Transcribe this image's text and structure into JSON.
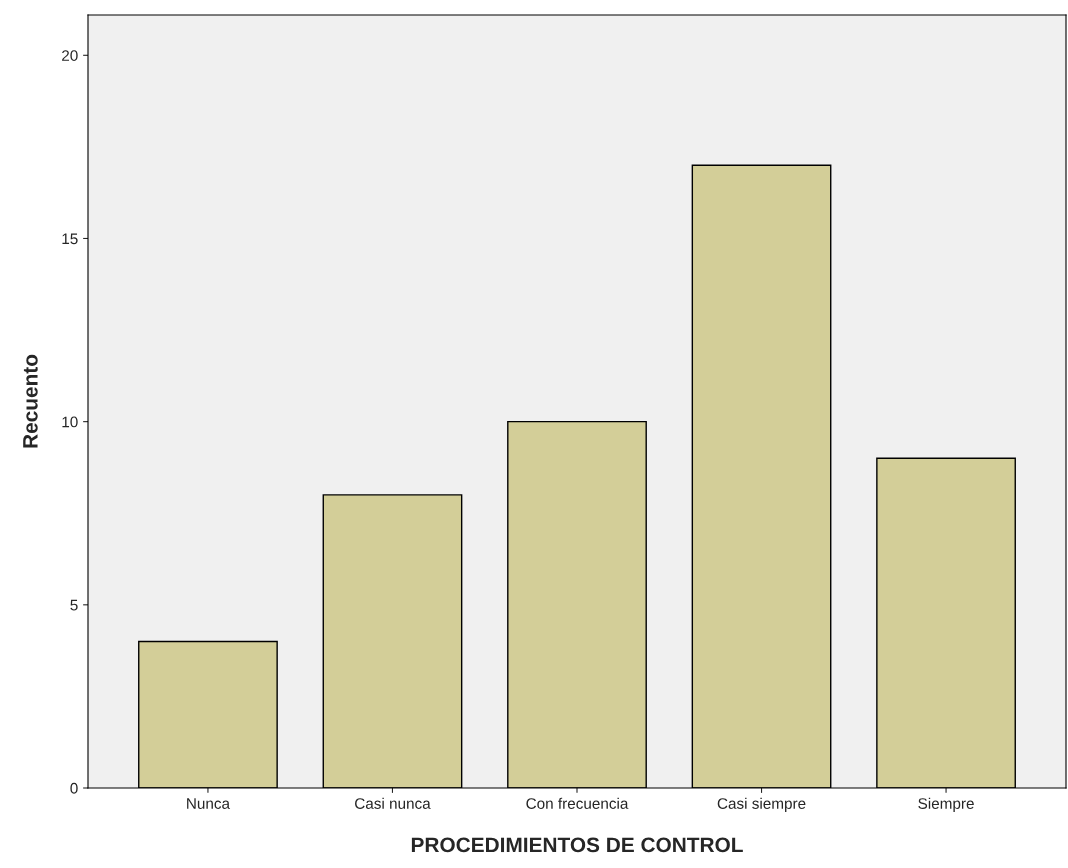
{
  "chart_data": {
    "type": "bar",
    "xlabel": "PROCEDIMIENTOS DE CONTROL",
    "ylabel": "Recuento",
    "categories": [
      "Nunca",
      "Casi nunca",
      "Con frecuencia",
      "Casi siempre",
      "Siempre"
    ],
    "values": [
      4,
      8,
      10,
      17,
      9
    ],
    "color": "#d3ce98",
    "ylim": [
      0,
      21.1
    ],
    "yticks": [
      0,
      5,
      10,
      15,
      20
    ],
    "grid": false
  }
}
